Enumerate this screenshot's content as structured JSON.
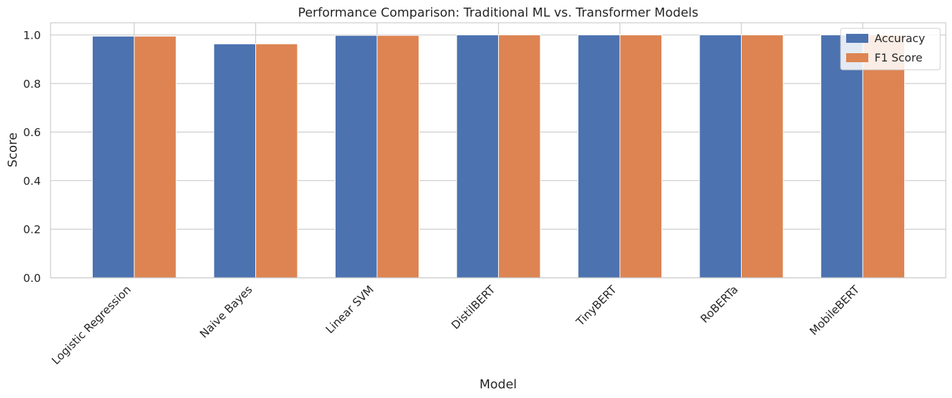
{
  "chart_data": {
    "type": "bar",
    "title": "Performance Comparison: Traditional ML vs. Transformer Models",
    "xlabel": "Model",
    "ylabel": "Score",
    "categories": [
      "Logistic Regression",
      "Naive Bayes",
      "Linear SVM",
      "DistilBERT",
      "TinyBERT",
      "RoBERTa",
      "MobileBERT"
    ],
    "series": [
      {
        "name": "Accuracy",
        "color": "#4c72b0",
        "values": [
          0.995,
          0.963,
          0.998,
          1.0,
          1.0,
          1.0,
          1.0
        ]
      },
      {
        "name": "F1 Score",
        "color": "#dd8452",
        "values": [
          0.995,
          0.963,
          0.998,
          1.0,
          1.0,
          1.0,
          1.0
        ]
      }
    ],
    "ylim": [
      0,
      1.05
    ],
    "yticks": [
      "0.0",
      "0.2",
      "0.4",
      "0.6",
      "0.8",
      "1.0"
    ],
    "grid": true,
    "legend_position": "top-right"
  }
}
